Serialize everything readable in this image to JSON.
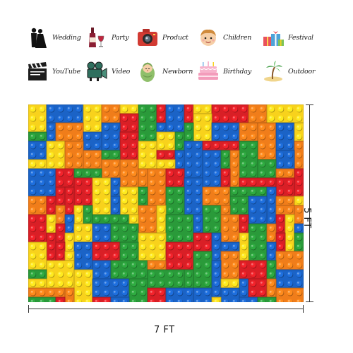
{
  "usage_icons": {
    "row1": [
      {
        "icon": "wedding-couple-icon",
        "label": "Wedding"
      },
      {
        "icon": "wine-bottle-glass-icon",
        "label": "Party"
      },
      {
        "icon": "camera-icon",
        "label": "Product"
      },
      {
        "icon": "child-face-icon",
        "label": "Children"
      },
      {
        "icon": "gift-boxes-icon",
        "label": "Festival"
      }
    ],
    "row2": [
      {
        "icon": "clapperboard-icon",
        "label": "YouTube"
      },
      {
        "icon": "video-camera-icon",
        "label": "Video"
      },
      {
        "icon": "swaddled-baby-icon",
        "label": "Newborn"
      },
      {
        "icon": "birthday-cake-icon",
        "label": "Birthday"
      },
      {
        "icon": "palm-island-icon",
        "label": "Outdoor"
      }
    ]
  },
  "dimensions": {
    "width_label": "7 FT",
    "height_label": "5 FT"
  },
  "backdrop": {
    "pattern": "toy-building-bricks",
    "colors": {
      "red": "#d91f26",
      "blue": "#1b63c6",
      "yellow": "#f8d21c",
      "green": "#2a9a3a",
      "orange": "#f07d1a"
    }
  }
}
